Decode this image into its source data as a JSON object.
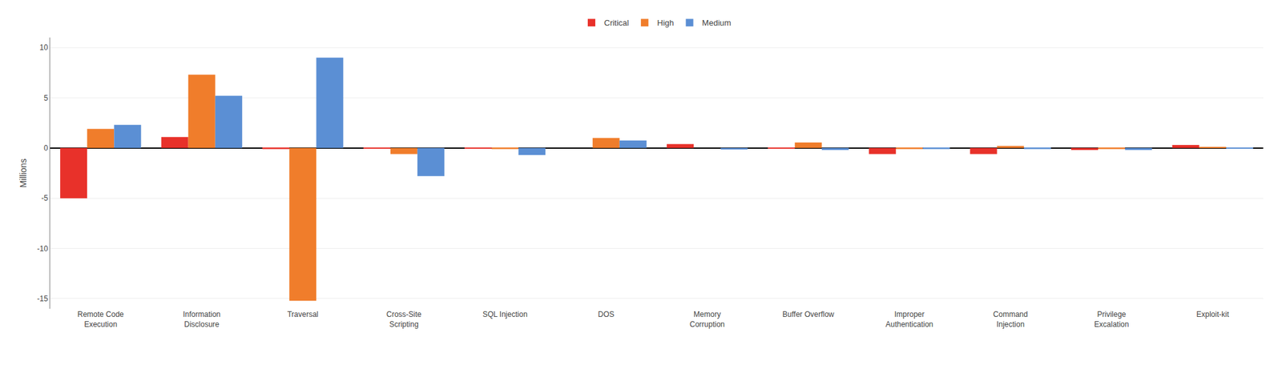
{
  "chart_data": {
    "type": "bar",
    "ylabel": "Millions",
    "categories": [
      "Remote Code\nExecution",
      "Information\nDisclosure",
      "Traversal",
      "Cross-Site\nScripting",
      "SQL Injection",
      "DOS",
      "Memory\nCorruption",
      "Buffer Overflow",
      "Improper\nAuthentication",
      "Command\nInjection",
      "Privilege\nExcalation",
      "Exploit-kit"
    ],
    "series": [
      {
        "name": "Critical",
        "color": "#e8312a",
        "values": [
          -5.0,
          1.1,
          -0.1,
          -0.05,
          -0.05,
          0.0,
          0.4,
          -0.05,
          -0.6,
          -0.6,
          -0.2,
          0.3
        ]
      },
      {
        "name": "High",
        "color": "#f07d2b",
        "values": [
          1.9,
          7.3,
          -15.2,
          -0.6,
          -0.1,
          1.0,
          0.0,
          0.55,
          -0.1,
          0.2,
          -0.1,
          0.1
        ]
      },
      {
        "name": "Medium",
        "color": "#5b8fd4",
        "values": [
          2.3,
          5.2,
          9.0,
          -2.8,
          -0.7,
          0.75,
          -0.15,
          -0.2,
          -0.1,
          -0.1,
          -0.2,
          -0.05
        ]
      }
    ],
    "ylim": [
      -16,
      11
    ],
    "yticks": [
      -15,
      -10,
      -5,
      0,
      5,
      10
    ],
    "grid": true,
    "legend": "top"
  }
}
